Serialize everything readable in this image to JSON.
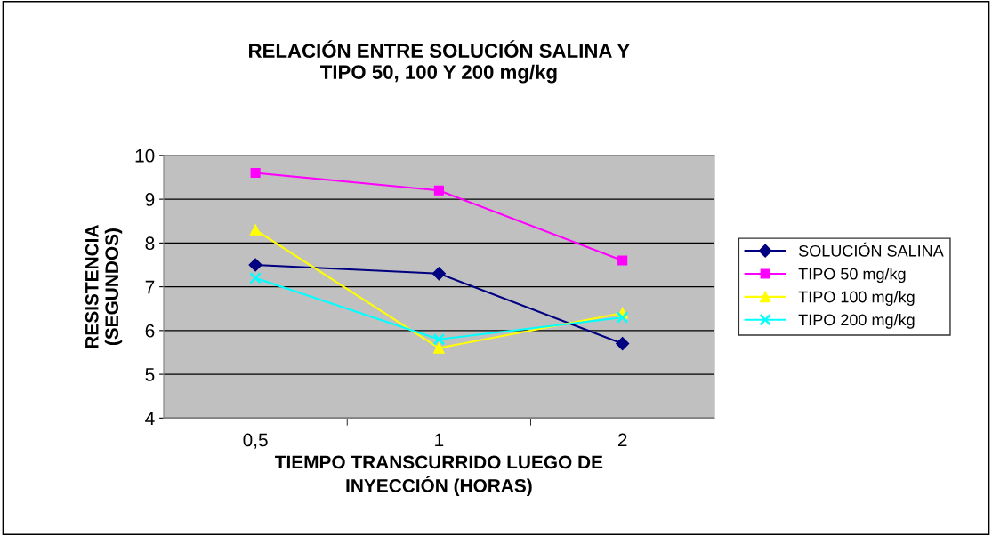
{
  "chart_data": {
    "type": "line",
    "title": "RELACIÓN ENTRE SOLUCIÓN SALINA Y\nTIPO 50, 100 Y 200 mg/kg",
    "xlabel": "TIEMPO TRANSCURRIDO LUEGO DE\nINYECCIÓN (HORAS)",
    "ylabel": "RESISTENCIA\n(SEGUNDOS)",
    "categories": [
      "0,5",
      "1",
      "2"
    ],
    "series": [
      {
        "name": "SOLUCIÓN SALINA",
        "color": "#000080",
        "marker": "diamond",
        "values": [
          7.5,
          7.3,
          5.7
        ]
      },
      {
        "name": "TIPO 50 mg/kg",
        "color": "#ff00ff",
        "marker": "square",
        "values": [
          9.6,
          9.2,
          7.6
        ]
      },
      {
        "name": "TIPO 100 mg/kg",
        "color": "#ffff00",
        "marker": "triangle",
        "values": [
          8.3,
          5.6,
          6.4
        ]
      },
      {
        "name": "TIPO 200 mg/kg",
        "color": "#00ffff",
        "marker": "cross",
        "values": [
          7.2,
          5.8,
          6.3
        ]
      }
    ],
    "ylim": [
      4,
      10
    ],
    "yticks": [
      4,
      5,
      6,
      7,
      8,
      9,
      10
    ],
    "grid": "y",
    "legend": "right"
  }
}
